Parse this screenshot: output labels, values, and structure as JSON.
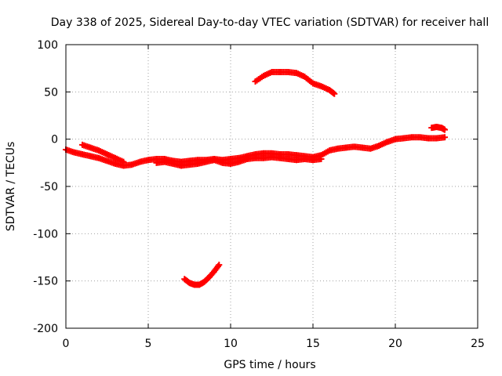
{
  "chart_data": {
    "type": "scatter",
    "title": "Day 338 of 2025, Sidereal Day-to-day VTEC variation (SDTVAR) for receiver hall",
    "xlabel": "GPS time / hours",
    "ylabel": "SDTVAR / TECUs",
    "xlim": [
      0,
      25
    ],
    "ylim": [
      -200,
      100
    ],
    "xticks": [
      0,
      5,
      10,
      15,
      20,
      25
    ],
    "yticks": [
      -200,
      -150,
      -100,
      -50,
      0,
      50,
      100
    ],
    "grid": true,
    "marker": "plus",
    "color": "#ff0000",
    "series": [
      {
        "name": "main-trace",
        "points": [
          [
            0.0,
            -11
          ],
          [
            0.5,
            -14
          ],
          [
            1.0,
            -16
          ],
          [
            1.5,
            -18
          ],
          [
            2.0,
            -20
          ],
          [
            2.5,
            -23
          ],
          [
            3.0,
            -26
          ],
          [
            3.5,
            -28
          ],
          [
            4.0,
            -27
          ],
          [
            4.5,
            -24
          ],
          [
            5.0,
            -22
          ],
          [
            5.5,
            -21
          ],
          [
            6.0,
            -21
          ],
          [
            6.5,
            -23
          ],
          [
            7.0,
            -24
          ],
          [
            7.5,
            -23
          ],
          [
            8.0,
            -22
          ],
          [
            8.5,
            -22
          ],
          [
            9.0,
            -21
          ],
          [
            9.5,
            -22
          ],
          [
            10.0,
            -21
          ],
          [
            10.5,
            -20
          ],
          [
            11.0,
            -18
          ],
          [
            11.5,
            -16
          ],
          [
            12.0,
            -15
          ],
          [
            12.5,
            -15
          ],
          [
            13.0,
            -16
          ],
          [
            13.5,
            -16
          ],
          [
            14.0,
            -17
          ],
          [
            14.5,
            -18
          ],
          [
            15.0,
            -19
          ],
          [
            15.5,
            -17
          ],
          [
            16.0,
            -12
          ],
          [
            16.5,
            -10
          ],
          [
            17.0,
            -9
          ],
          [
            17.5,
            -8
          ],
          [
            18.0,
            -9
          ],
          [
            18.5,
            -10
          ],
          [
            19.0,
            -7
          ],
          [
            19.5,
            -3
          ],
          [
            20.0,
            0
          ],
          [
            20.5,
            1
          ],
          [
            21.0,
            2
          ],
          [
            21.5,
            2
          ],
          [
            22.0,
            1
          ],
          [
            22.5,
            1
          ],
          [
            23.0,
            2
          ]
        ]
      },
      {
        "name": "upper-band",
        "points": [
          [
            1.0,
            -6
          ],
          [
            1.5,
            -9
          ],
          [
            2.0,
            -12
          ],
          [
            2.5,
            -16
          ],
          [
            3.0,
            -20
          ],
          [
            3.5,
            -24
          ]
        ]
      },
      {
        "name": "lower-band",
        "points": [
          [
            5.5,
            -25
          ],
          [
            6.0,
            -24
          ],
          [
            6.5,
            -26
          ],
          [
            7.0,
            -28
          ],
          [
            7.5,
            -27
          ],
          [
            8.0,
            -26
          ],
          [
            8.5,
            -24
          ],
          [
            9.0,
            -22
          ],
          [
            9.5,
            -25
          ],
          [
            10.0,
            -26
          ],
          [
            10.5,
            -24
          ],
          [
            11.0,
            -21
          ],
          [
            11.5,
            -20
          ],
          [
            12.0,
            -20
          ],
          [
            12.5,
            -19
          ],
          [
            13.0,
            -20
          ],
          [
            13.5,
            -21
          ],
          [
            14.0,
            -22
          ],
          [
            14.5,
            -21
          ],
          [
            15.0,
            -22
          ],
          [
            15.5,
            -21
          ]
        ]
      },
      {
        "name": "high-arc",
        "points": [
          [
            11.5,
            61
          ],
          [
            12.0,
            67
          ],
          [
            12.5,
            71
          ],
          [
            13.0,
            71
          ],
          [
            13.5,
            71
          ],
          [
            14.0,
            70
          ],
          [
            14.5,
            66
          ],
          [
            15.0,
            59
          ],
          [
            15.5,
            56
          ],
          [
            16.0,
            52
          ],
          [
            16.3,
            48
          ]
        ]
      },
      {
        "name": "low-arc",
        "points": [
          [
            7.2,
            -148
          ],
          [
            7.5,
            -152
          ],
          [
            7.8,
            -154
          ],
          [
            8.1,
            -154
          ],
          [
            8.4,
            -151
          ],
          [
            8.7,
            -146
          ],
          [
            9.0,
            -140
          ],
          [
            9.3,
            -133
          ]
        ]
      },
      {
        "name": "end-blip",
        "points": [
          [
            22.2,
            12
          ],
          [
            22.5,
            13
          ],
          [
            22.8,
            12
          ],
          [
            23.0,
            10
          ]
        ]
      }
    ]
  }
}
